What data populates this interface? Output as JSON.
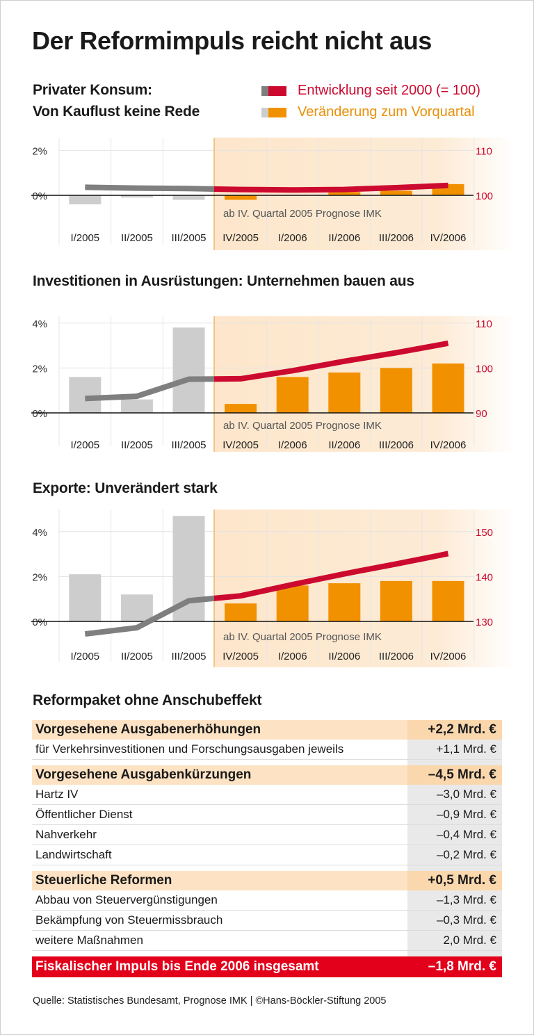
{
  "title": "Der Reformimpuls reicht nicht aus",
  "colors": {
    "red": "#cc0a2f",
    "gray_line": "#7f7f7f",
    "orange": "#f29100",
    "gray_bar": "#cdcdcd",
    "forecast_bg": "#fde6cb",
    "total_red": "#e2001a"
  },
  "legend": [
    {
      "label": "Entwicklung seit 2000 (= 100)",
      "colors": [
        "#7f7f7f",
        "#cc0a2f"
      ]
    },
    {
      "label": "Veränderung zum Vorquartal",
      "colors": [
        "#cdcdcd",
        "#f29100"
      ]
    }
  ],
  "chart_data": [
    {
      "type": "bar+line",
      "title_lines": [
        "Privater Konsum:",
        "Von Kauflust keine Rede"
      ],
      "categories": [
        "I/2005",
        "II/2005",
        "III/2005",
        "IV/2005",
        "I/2006",
        "II/2006",
        "III/2006",
        "IV/2006"
      ],
      "forecast_from": "IV/2005",
      "note": "ab IV. Quartal 2005 Prognose IMK",
      "y_ticks": [
        0,
        2
      ],
      "y_tick_labels": [
        "0%",
        "2%"
      ],
      "y2_ticks": [
        100,
        110
      ],
      "y2_tick_labels": [
        "100",
        "110"
      ],
      "series": [
        {
          "name": "Veränderung zum Vorquartal",
          "type": "bar",
          "values": [
            -0.4,
            -0.1,
            -0.2,
            -0.2,
            0.0,
            0.15,
            0.2,
            0.5
          ]
        },
        {
          "name": "Entwicklung seit 2000 (= 100)",
          "type": "line",
          "axis": "right",
          "values": [
            101.8,
            101.6,
            101.5,
            101.3,
            101.2,
            101.3,
            101.7,
            102.2
          ]
        }
      ]
    },
    {
      "type": "bar+line",
      "title": "Investitionen in Ausrüstungen: Unternehmen bauen aus",
      "categories": [
        "I/2005",
        "II/2005",
        "III/2005",
        "IV/2005",
        "I/2006",
        "II/2006",
        "III/2006",
        "IV/2006"
      ],
      "forecast_from": "IV/2005",
      "note": "ab IV. Quartal 2005 Prognose IMK",
      "y_ticks": [
        0,
        2,
        4
      ],
      "y_tick_labels": [
        "0%",
        "2%",
        "4%"
      ],
      "y2_ticks": [
        90,
        100,
        110
      ],
      "y2_tick_labels": [
        "90",
        "100",
        "110"
      ],
      "series": [
        {
          "name": "Veränderung zum Vorquartal",
          "type": "bar",
          "values": [
            1.6,
            0.6,
            3.8,
            0.4,
            1.6,
            1.8,
            2.0,
            2.2
          ]
        },
        {
          "name": "Entwicklung seit 2000 (= 100)",
          "type": "line",
          "axis": "right",
          "values": [
            93.2,
            93.7,
            97.5,
            97.6,
            99.4,
            101.5,
            103.4,
            105.5
          ]
        }
      ]
    },
    {
      "type": "bar+line",
      "title": "Exporte: Unverändert stark",
      "categories": [
        "I/2005",
        "II/2005",
        "III/2005",
        "IV/2005",
        "I/2006",
        "II/2006",
        "III/2006",
        "IV/2006"
      ],
      "forecast_from": "IV/2005",
      "note": "ab IV. Quartal 2005 Prognose IMK",
      "y_ticks": [
        0,
        2,
        4
      ],
      "y_tick_labels": [
        "0%",
        "2%",
        "4%"
      ],
      "y2_ticks": [
        130,
        140,
        150
      ],
      "y2_tick_labels": [
        "130",
        "140",
        "150"
      ],
      "series": [
        {
          "name": "Veränderung zum Vorquartal",
          "type": "bar",
          "values": [
            2.1,
            1.2,
            4.7,
            0.8,
            1.6,
            1.7,
            1.8,
            1.8
          ]
        },
        {
          "name": "Entwicklung seit 2000 (= 100)",
          "type": "line",
          "axis": "right",
          "values": [
            127.2,
            128.6,
            134.6,
            135.7,
            138.2,
            140.6,
            142.8,
            145.1
          ]
        }
      ]
    }
  ],
  "table": {
    "title": "Reformpaket ohne Anschubeffekt",
    "sections": [
      {
        "label": "Vorgesehene Ausgabenerhöhungen",
        "value": "+2,2 Mrd. €",
        "rows": [
          {
            "label": "für Verkehrsinvestitionen und Forschungsausgaben jeweils",
            "value": "+1,1 Mrd. €"
          }
        ]
      },
      {
        "label": "Vorgesehene Ausgabenkürzungen",
        "value": "–4,5 Mrd. €",
        "rows": [
          {
            "label": "Hartz IV",
            "value": "–3,0 Mrd. €"
          },
          {
            "label": "Öffentlicher Dienst",
            "value": "–0,9 Mrd. €"
          },
          {
            "label": "Nahverkehr",
            "value": "–0,4 Mrd. €"
          },
          {
            "label": "Landwirtschaft",
            "value": "–0,2 Mrd. €"
          }
        ]
      },
      {
        "label": "Steuerliche Reformen",
        "value": "+0,5 Mrd. €",
        "rows": [
          {
            "label": "Abbau von Steuervergünstigungen",
            "value": "–1,3 Mrd. €"
          },
          {
            "label": "Bekämpfung von Steuermissbrauch",
            "value": "–0,3 Mrd. €"
          },
          {
            "label": "weitere Maßnahmen",
            "value": "2,0 Mrd. €"
          }
        ]
      }
    ],
    "total": {
      "label": "Fiskalischer Impuls bis Ende 2006 insgesamt",
      "value": "–1,8 Mrd. €"
    }
  },
  "footer": "Quelle: Statistisches Bundesamt, Prognose IMK | ©Hans-Böckler-Stiftung 2005"
}
